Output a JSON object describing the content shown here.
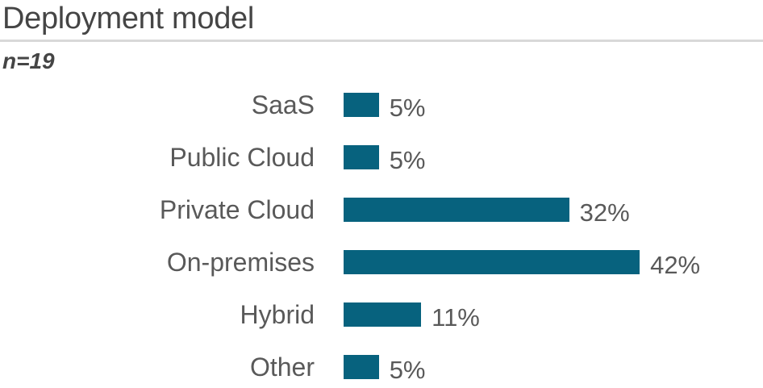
{
  "chart_data": {
    "type": "bar",
    "orientation": "horizontal",
    "title": "Deployment model",
    "subtitle": "n=19",
    "categories": [
      "SaaS",
      "Public Cloud",
      "Private Cloud",
      "On-premises",
      "Hybrid",
      "Other"
    ],
    "values": [
      5,
      5,
      32,
      42,
      11,
      5
    ],
    "value_labels": [
      "5%",
      "5%",
      "32%",
      "42%",
      "11%",
      "5%"
    ],
    "unit": "%",
    "xlim": [
      0,
      45
    ],
    "grid": false,
    "legend": false,
    "value_label_position": "end-of-bar",
    "colors": {
      "bar": "#07627e",
      "text": "#595959",
      "title": "#454545",
      "divider": "#d9d9d9"
    }
  }
}
